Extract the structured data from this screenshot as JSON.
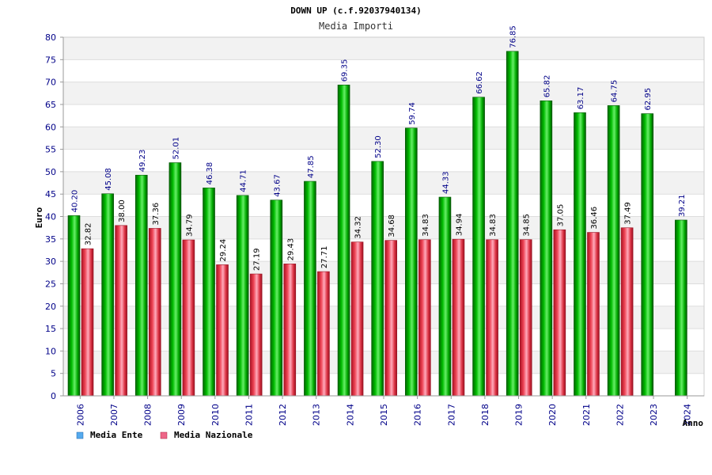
{
  "chart_data": {
    "type": "bar",
    "title": "DOWN UP (c.f.92037940134)",
    "subtitle": "Media Importi",
    "xlabel": "Anno",
    "ylabel": "Euro",
    "ylim": [
      0,
      80
    ],
    "yticks": [
      0,
      5,
      10,
      15,
      20,
      25,
      30,
      35,
      40,
      45,
      50,
      55,
      60,
      65,
      70,
      75,
      80
    ],
    "categories": [
      "2006",
      "2007",
      "2008",
      "2009",
      "2010",
      "2011",
      "2012",
      "2013",
      "2014",
      "2015",
      "2016",
      "2017",
      "2018",
      "2019",
      "2020",
      "2021",
      "2022",
      "2023",
      "2024"
    ],
    "series": [
      {
        "name": "Media Ente",
        "color": "#00aa00",
        "legend_color": "#55aaee",
        "values": [
          40.2,
          45.08,
          49.23,
          52.01,
          46.38,
          44.71,
          43.67,
          47.85,
          69.35,
          52.3,
          59.74,
          44.33,
          66.62,
          76.85,
          65.82,
          63.17,
          64.75,
          62.95,
          39.21
        ],
        "labels": [
          "40.20",
          "45.08",
          "49.23",
          "52.01",
          "46.38",
          "44.71",
          "43.67",
          "47.85",
          "69.35",
          "52.30",
          "59.74",
          "44.33",
          "66.62",
          "76.85",
          "65.82",
          "63.17",
          "64.75",
          "62.95",
          "39.21"
        ]
      },
      {
        "name": "Media Nazionale",
        "color": "#dd3344",
        "legend_color": "#ee6688",
        "values": [
          32.82,
          38.0,
          37.36,
          34.79,
          29.24,
          27.19,
          29.43,
          27.71,
          34.32,
          34.68,
          34.83,
          34.94,
          34.83,
          34.85,
          37.05,
          36.46,
          37.49,
          null,
          null
        ],
        "labels": [
          "32.82",
          "38.00",
          "37.36",
          "34.79",
          "29.24",
          "27.19",
          "29.43",
          "27.71",
          "34.32",
          "34.68",
          "34.83",
          "34.94",
          "34.83",
          "34.85",
          "37.05",
          "36.46",
          "37.49",
          null,
          null
        ]
      }
    ],
    "grid": true,
    "legend": "bottom-left"
  }
}
